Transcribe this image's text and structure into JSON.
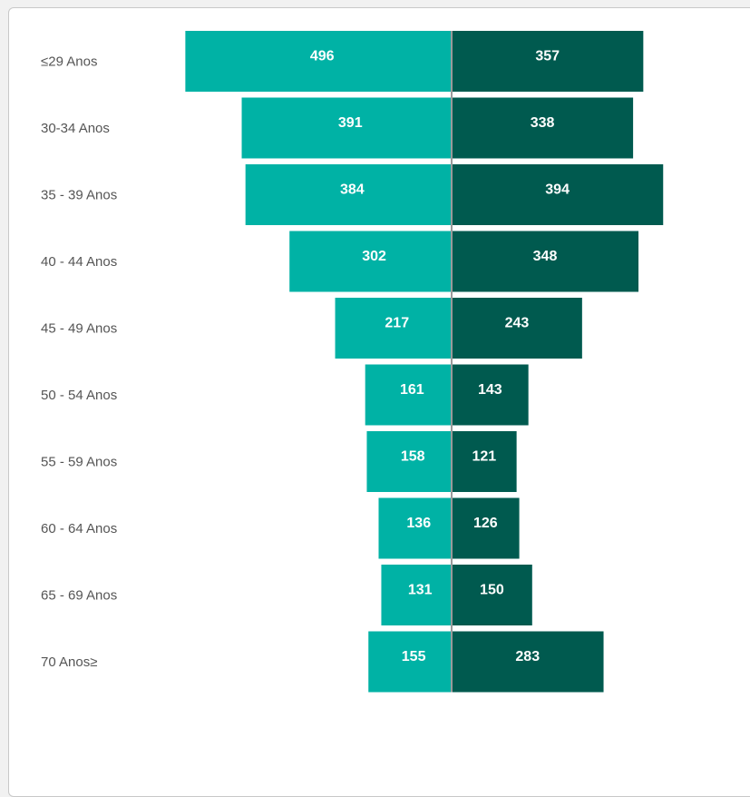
{
  "chart_data": {
    "type": "bar",
    "orientation": "horizontal-diverging",
    "categories": [
      "≤29 Anos",
      "30-34 Anos",
      "35 - 39 Anos",
      "40 - 44 Anos",
      "45 - 49 Anos",
      "50 - 54 Anos",
      "55 - 59 Anos",
      "60 - 64 Anos",
      "65 - 69 Anos",
      "70 Anos≥"
    ],
    "series": [
      {
        "values": [
          496,
          391,
          384,
          302,
          217,
          161,
          158,
          136,
          131,
          155
        ],
        "color": "#00b2a5"
      },
      {
        "values": [
          357,
          338,
          394,
          348,
          243,
          143,
          121,
          126,
          150,
          283
        ],
        "color": "#005a4f"
      }
    ],
    "title": "",
    "xlabel": "",
    "ylabel": "",
    "grid": false,
    "legend": "none"
  }
}
